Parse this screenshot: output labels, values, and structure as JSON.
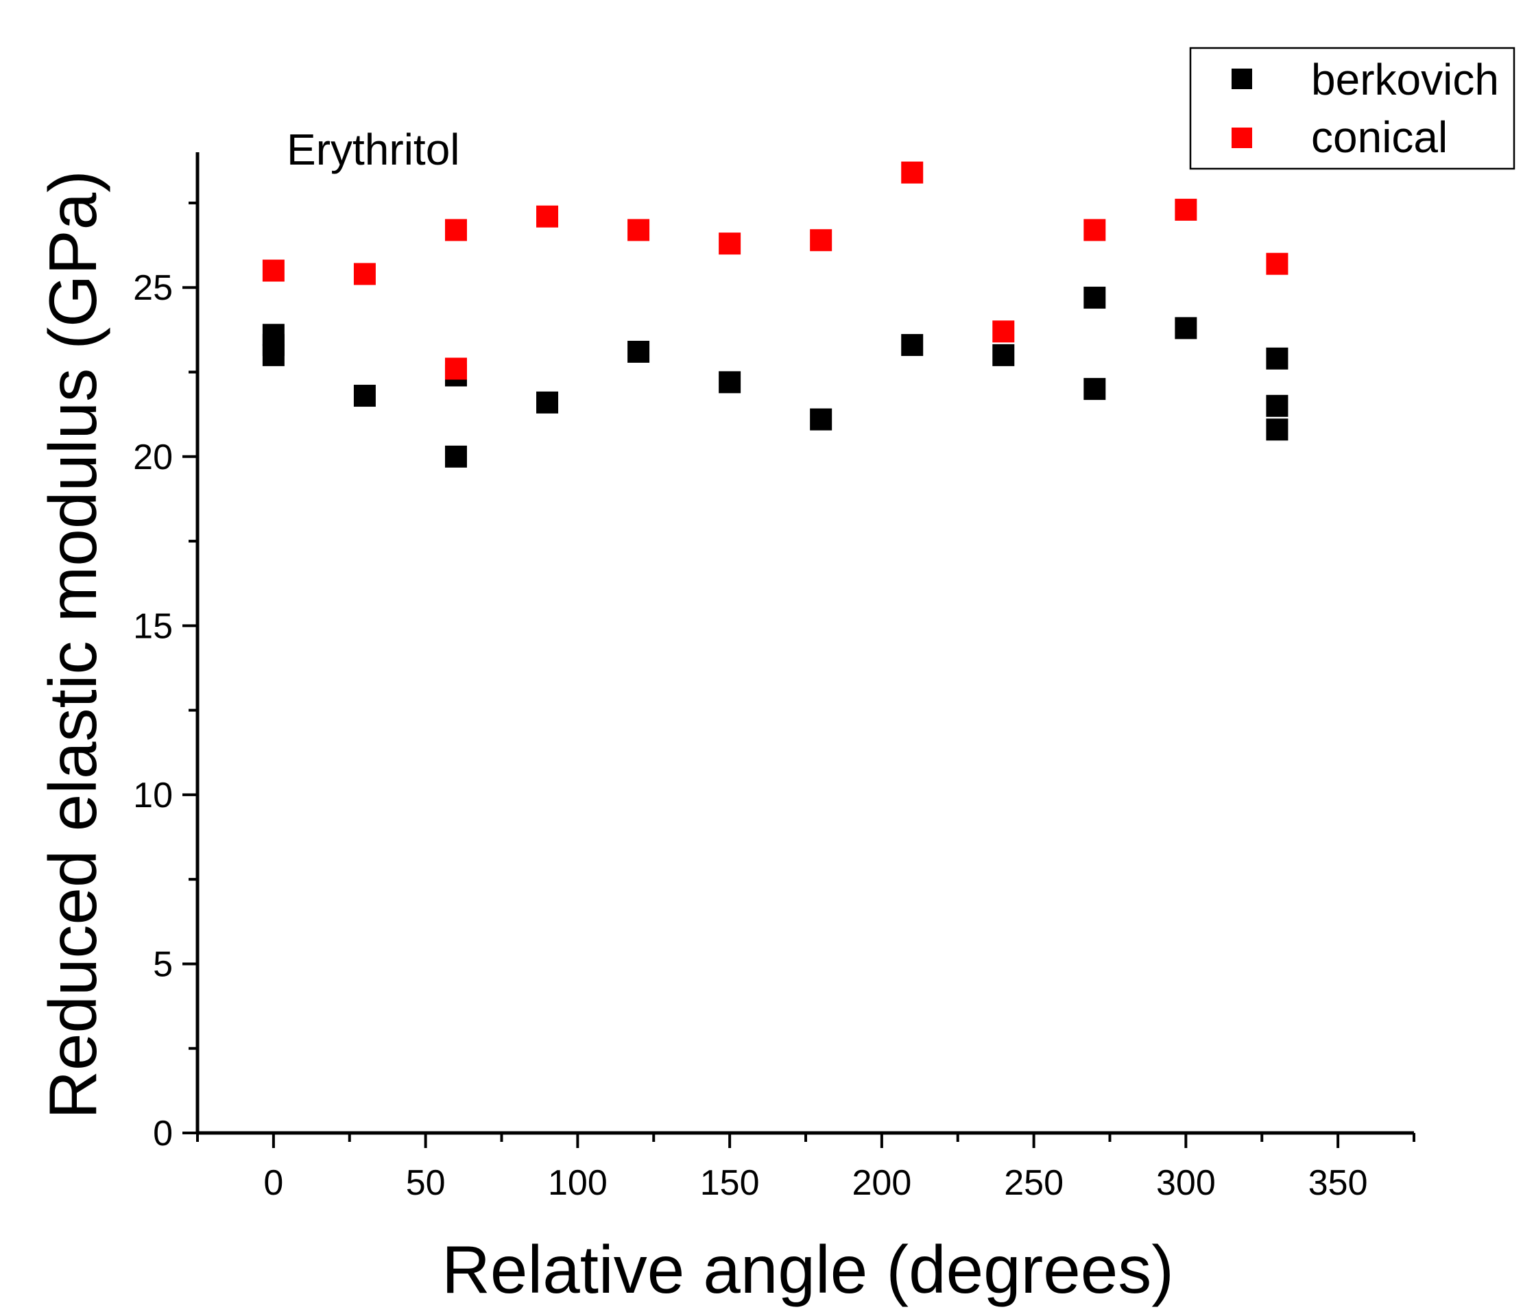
{
  "chart_data": {
    "type": "scatter",
    "title": "",
    "annotation": "Erythritol",
    "xlabel": "Relative angle (degrees)",
    "ylabel": "Reduced elastic modulus (GPa)",
    "xlim": [
      -25,
      375
    ],
    "ylim": [
      0,
      29
    ],
    "xticks": [
      0,
      50,
      100,
      150,
      200,
      250,
      300,
      350
    ],
    "xtick_labels": [
      "0",
      "50",
      "100",
      "150",
      "200",
      "250",
      "300",
      "350"
    ],
    "yticks": [
      0,
      5,
      10,
      15,
      20,
      25
    ],
    "ytick_labels": [
      "0",
      "5",
      "10",
      "15",
      "20",
      "25"
    ],
    "grid": false,
    "legend_position": "top-right",
    "series": [
      {
        "name": "berkovich",
        "color": "#000000",
        "marker": "square",
        "points": [
          {
            "x": 0,
            "y": 23.0
          },
          {
            "x": 0,
            "y": 23.3
          },
          {
            "x": 0,
            "y": 23.6
          },
          {
            "x": 30,
            "y": 21.8
          },
          {
            "x": 60,
            "y": 22.4
          },
          {
            "x": 60,
            "y": 20.0
          },
          {
            "x": 90,
            "y": 21.6
          },
          {
            "x": 120,
            "y": 23.1
          },
          {
            "x": 150,
            "y": 22.2
          },
          {
            "x": 180,
            "y": 21.1
          },
          {
            "x": 210,
            "y": 23.3
          },
          {
            "x": 240,
            "y": 23.0
          },
          {
            "x": 270,
            "y": 24.7
          },
          {
            "x": 270,
            "y": 22.0
          },
          {
            "x": 300,
            "y": 23.8
          },
          {
            "x": 330,
            "y": 22.9
          },
          {
            "x": 330,
            "y": 21.5
          },
          {
            "x": 330,
            "y": 20.8
          }
        ]
      },
      {
        "name": "conical",
        "color": "#ff0000",
        "marker": "square",
        "points": [
          {
            "x": 0,
            "y": 25.5
          },
          {
            "x": 30,
            "y": 25.4
          },
          {
            "x": 60,
            "y": 26.7
          },
          {
            "x": 60,
            "y": 22.6
          },
          {
            "x": 90,
            "y": 27.1
          },
          {
            "x": 120,
            "y": 26.7
          },
          {
            "x": 150,
            "y": 26.3
          },
          {
            "x": 180,
            "y": 26.4
          },
          {
            "x": 210,
            "y": 28.4
          },
          {
            "x": 240,
            "y": 23.7
          },
          {
            "x": 270,
            "y": 26.7
          },
          {
            "x": 300,
            "y": 27.3
          },
          {
            "x": 330,
            "y": 25.7
          }
        ]
      }
    ]
  }
}
